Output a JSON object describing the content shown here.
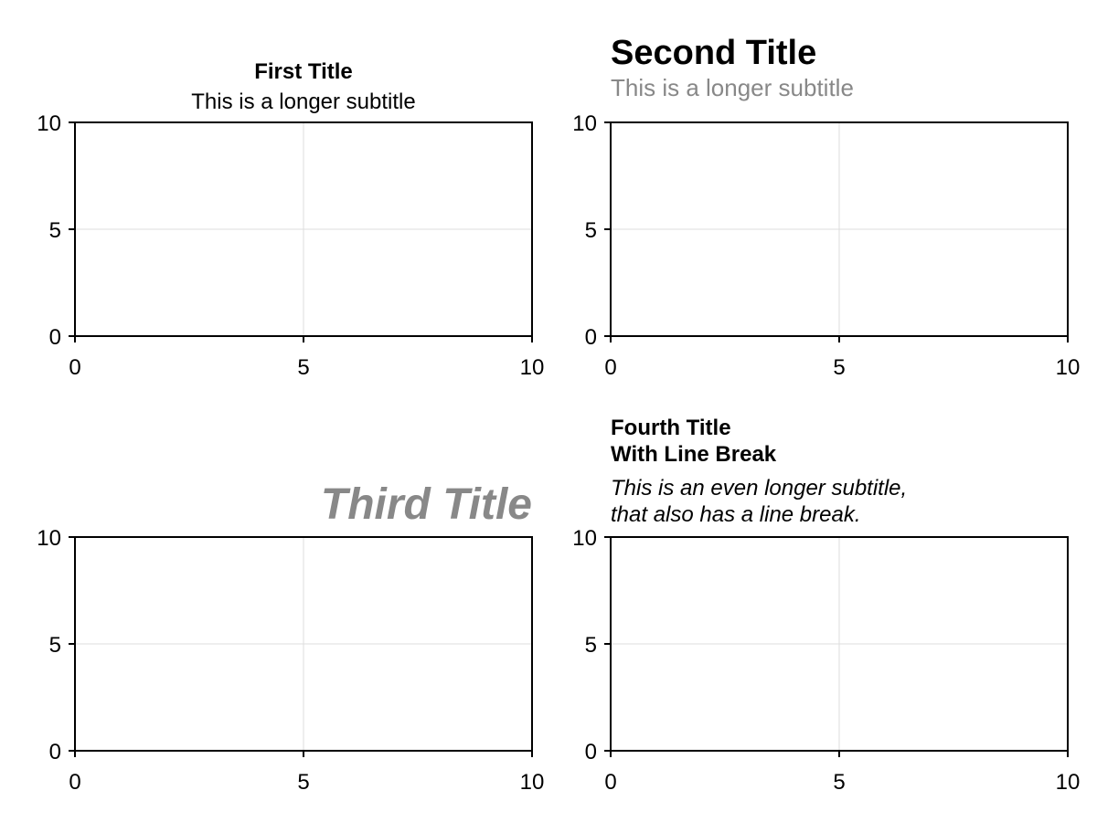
{
  "chart_data": [
    {
      "type": "line",
      "title": "First Title",
      "subtitle": "This is a longer subtitle",
      "xlim": [
        0,
        10
      ],
      "ylim": [
        0,
        10
      ],
      "xticks": [
        0,
        5,
        10
      ],
      "yticks": [
        0,
        5,
        10
      ],
      "grid": true,
      "series": []
    },
    {
      "type": "line",
      "title": "Second Title",
      "subtitle": "This is a longer subtitle",
      "xlim": [
        0,
        10
      ],
      "ylim": [
        0,
        10
      ],
      "xticks": [
        0,
        5,
        10
      ],
      "yticks": [
        0,
        5,
        10
      ],
      "grid": true,
      "series": []
    },
    {
      "type": "line",
      "title": "Third Title",
      "subtitle": "",
      "xlim": [
        0,
        10
      ],
      "ylim": [
        0,
        10
      ],
      "xticks": [
        0,
        5,
        10
      ],
      "yticks": [
        0,
        5,
        10
      ],
      "grid": true,
      "series": []
    },
    {
      "type": "line",
      "title": "Fourth Title\nWith Line Break",
      "subtitle": "This is an even longer subtitle,\nthat also has a line break.",
      "xlim": [
        0,
        10
      ],
      "ylim": [
        0,
        10
      ],
      "xticks": [
        0,
        5,
        10
      ],
      "yticks": [
        0,
        5,
        10
      ],
      "grid": true,
      "series": []
    }
  ],
  "colors": {
    "axis": "#000000",
    "grid": "#dddddd",
    "muted_text": "#888888",
    "text": "#000000"
  }
}
